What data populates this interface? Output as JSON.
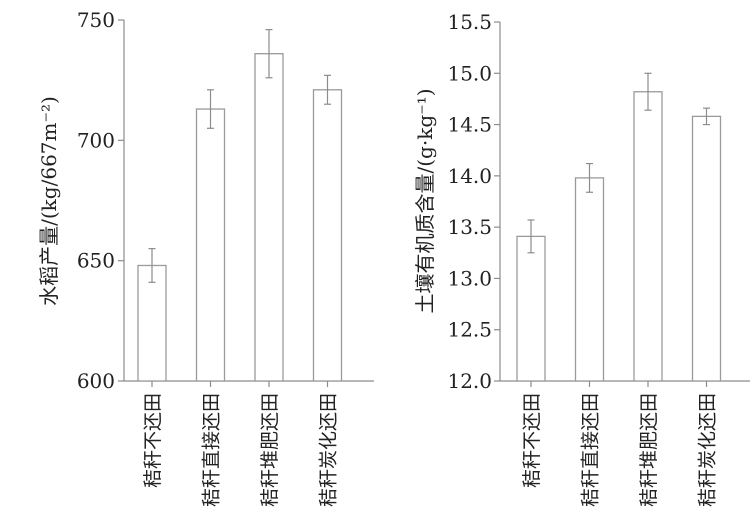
{
  "chart_data": [
    {
      "type": "bar",
      "categories": [
        "秸秆不还田",
        "秸秆直接还田",
        "秸秆堆肥还田",
        "秸秆炭化还田"
      ],
      "values": [
        648,
        713,
        736,
        721
      ],
      "errors": [
        7,
        8,
        10,
        6
      ],
      "ylabel": "水稻产量/(kg/667m⁻²)",
      "xlabel": "",
      "ylim": [
        600,
        750
      ],
      "yticks": [
        600,
        650,
        700,
        750
      ],
      "tick_labels": [
        "600",
        "650",
        "700",
        "750"
      ],
      "grid": false
    },
    {
      "type": "bar",
      "categories": [
        "秸秆不还田",
        "秸秆直接还田",
        "秸秆堆肥还田",
        "秸秆炭化还田"
      ],
      "values": [
        13.41,
        13.98,
        14.82,
        14.58
      ],
      "errors": [
        0.16,
        0.14,
        0.18,
        0.08
      ],
      "ylabel": "土壤有机质含量/(g·kg⁻¹)",
      "xlabel": "",
      "ylim": [
        12.0,
        15.5
      ],
      "yticks": [
        12.0,
        12.5,
        13.0,
        13.5,
        14.0,
        14.5,
        15.0,
        15.5
      ],
      "tick_labels": [
        "12.0",
        "12.5",
        "13.0",
        "13.5",
        "14.0",
        "14.5",
        "15.0",
        "15.5"
      ],
      "grid": false
    }
  ],
  "colors": {
    "bar_fill": "#ffffff",
    "bar_stroke": "#9a9a9a",
    "axis": "#8c8c8c"
  }
}
